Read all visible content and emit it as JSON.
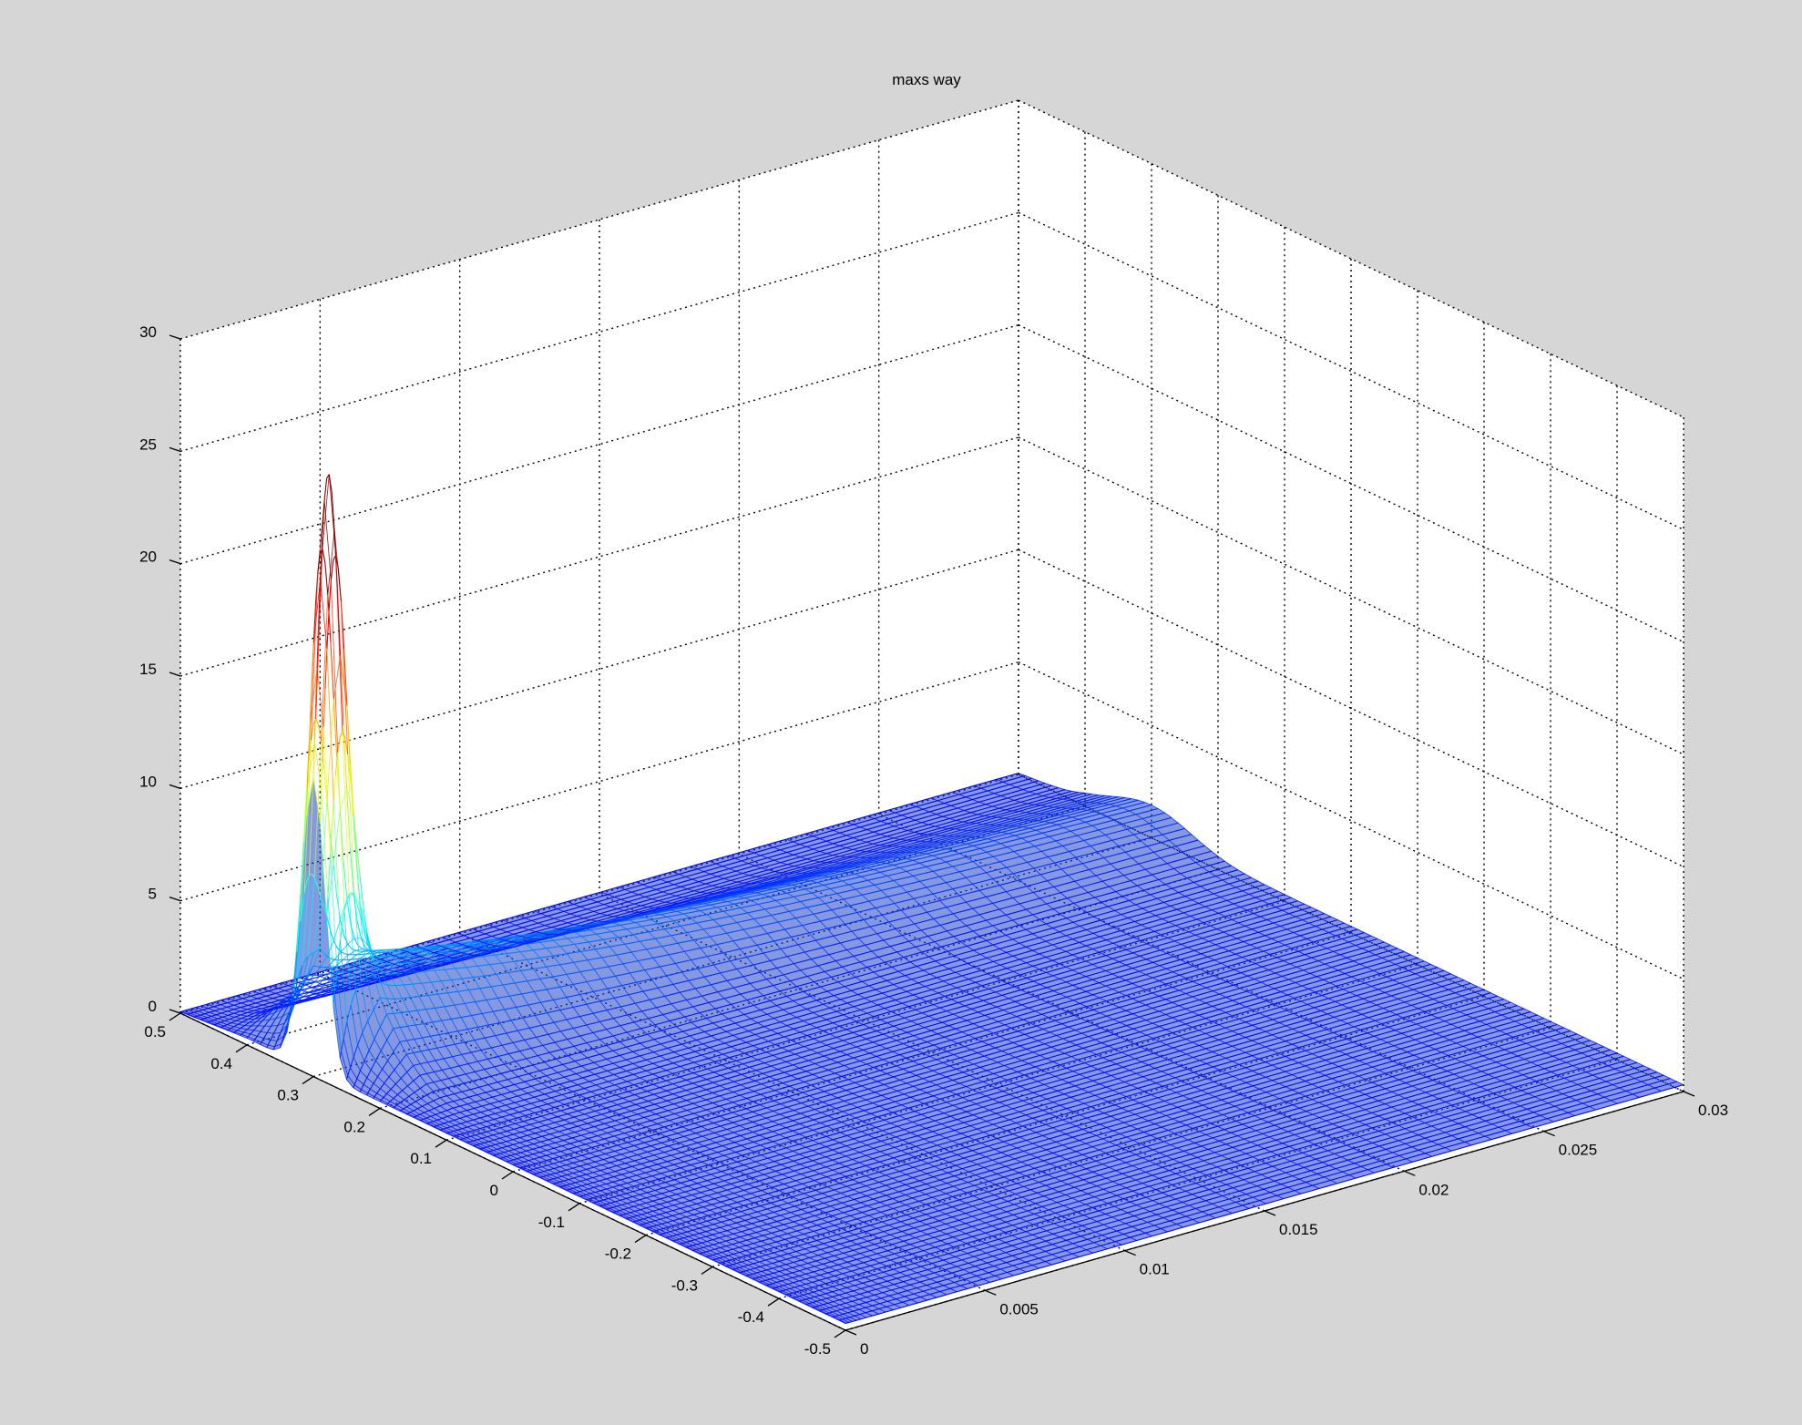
{
  "chart_data": {
    "type": "surface",
    "title": "maxs way",
    "xlabel": "",
    "ylabel": "",
    "zlabel": "",
    "xlim": [
      0,
      0.03
    ],
    "ylim": [
      -0.5,
      0.5
    ],
    "zlim": [
      0,
      30
    ],
    "x_ticks": [
      0,
      0.005,
      0.01,
      0.015,
      0.02,
      0.025,
      0.03
    ],
    "x_tick_labels": [
      "0",
      "0.005",
      "0.01",
      "0.015",
      "0.02",
      "0.025",
      "0.03"
    ],
    "y_ticks": [
      -0.5,
      -0.4,
      -0.3,
      -0.2,
      -0.1,
      0,
      0.1,
      0.2,
      0.3,
      0.4,
      0.5
    ],
    "y_tick_labels": [
      "-0.5",
      "-0.4",
      "-0.3",
      "-0.2",
      "-0.1",
      "0",
      "0.1",
      "0.2",
      "0.3",
      "0.4",
      "0.5"
    ],
    "z_ticks": [
      0,
      5,
      10,
      15,
      20,
      25,
      30
    ],
    "z_tick_labels": [
      "0",
      "5",
      "10",
      "15",
      "20",
      "25",
      "30"
    ],
    "grid": true,
    "colormap": "jet",
    "peak": {
      "x": 0.0005,
      "y": 0.3,
      "z": 24.5
    },
    "ridge": {
      "y": 0.3,
      "z_at_x_0_002": 4.5,
      "z_at_x_0_01": 2.5,
      "z_at_x_0_03": 0.8
    },
    "surface_base_z": 0.3
  },
  "colors": {
    "figure_background": "#d6d6d6",
    "axes_background": "#ffffff",
    "grid": "#000000",
    "mesh_low": "#1f3fbf",
    "mesh_high": "#8b0000"
  }
}
